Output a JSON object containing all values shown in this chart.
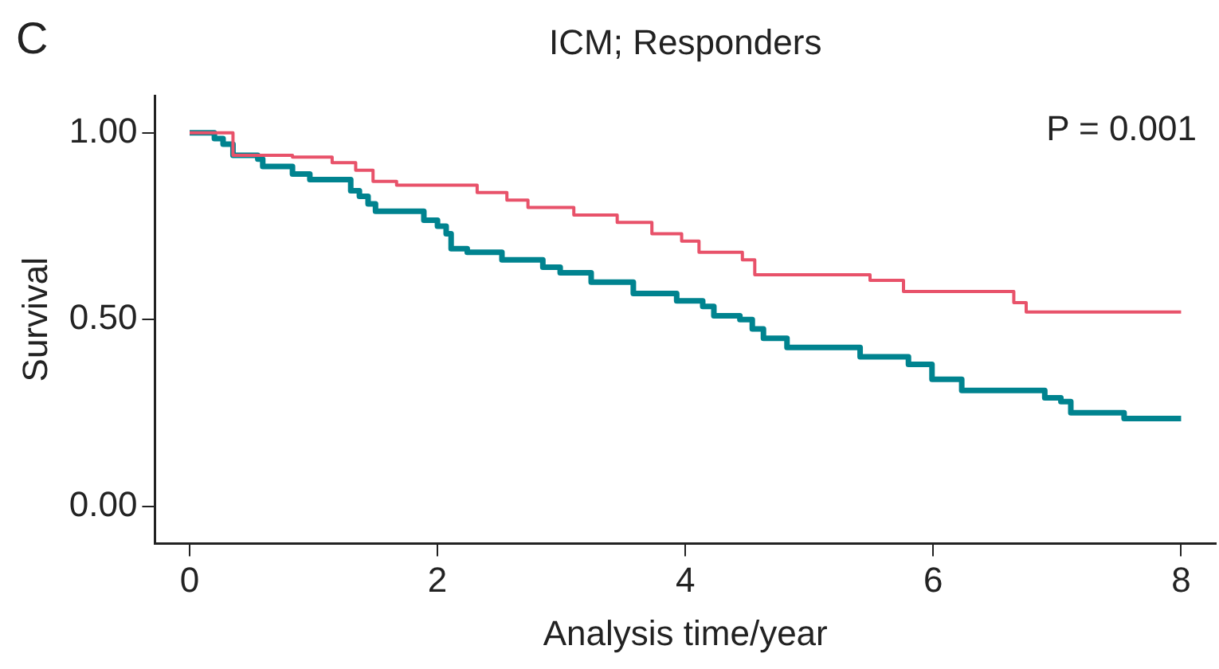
{
  "chart_data": {
    "type": "step",
    "title": "ICM; Responders",
    "xlabel": "Analysis time/year",
    "ylabel": "Survival",
    "annotations": [
      "C",
      "P = 0.001"
    ],
    "xlim": [
      -0.28,
      8.28
    ],
    "xticks": [
      0,
      2,
      4,
      6,
      8
    ],
    "ylim": [
      -0.1,
      1.1
    ],
    "yticks": [
      {
        "value": 0,
        "label": "0.00"
      },
      {
        "value": 0.5,
        "label": "0.50"
      },
      {
        "value": 1,
        "label": "1.00"
      }
    ],
    "grid": false,
    "legend": false,
    "marker": "none",
    "line_style": "solid",
    "series": [
      {
        "color": "#e8526a",
        "x": [
          0,
          0.35,
          0.83,
          1.15,
          1.34,
          1.48,
          1.67,
          2.32,
          2.56,
          2.73,
          3.1,
          3.45,
          3.73,
          3.97,
          4.11,
          4.46,
          4.56,
          5.49,
          5.76,
          6.65,
          6.75,
          8
        ],
        "values": [
          1,
          0.94,
          0.935,
          0.92,
          0.9,
          0.87,
          0.86,
          0.84,
          0.82,
          0.8,
          0.78,
          0.76,
          0.73,
          0.71,
          0.68,
          0.66,
          0.62,
          0.605,
          0.575,
          0.545,
          0.52,
          0.52
        ]
      },
      {
        "color": "#00838f",
        "x": [
          0,
          0.2,
          0.27,
          0.35,
          0.55,
          0.59,
          0.83,
          0.97,
          1.3,
          1.37,
          1.44,
          1.5,
          1.89,
          2,
          2.07,
          2.11,
          2.24,
          2.52,
          2.85,
          2.99,
          3.24,
          3.58,
          3.93,
          4.14,
          4.23,
          4.44,
          4.54,
          4.63,
          4.82,
          5.41,
          5.8,
          5.99,
          6.23,
          6.9,
          7.03,
          7.11,
          7.54,
          8
        ],
        "values": [
          1,
          0.985,
          0.97,
          0.94,
          0.93,
          0.91,
          0.89,
          0.875,
          0.845,
          0.83,
          0.81,
          0.79,
          0.766,
          0.75,
          0.73,
          0.69,
          0.68,
          0.66,
          0.64,
          0.625,
          0.6,
          0.57,
          0.55,
          0.535,
          0.51,
          0.5,
          0.475,
          0.45,
          0.425,
          0.4,
          0.38,
          0.34,
          0.31,
          0.29,
          0.28,
          0.25,
          0.235,
          0.235
        ]
      }
    ]
  }
}
